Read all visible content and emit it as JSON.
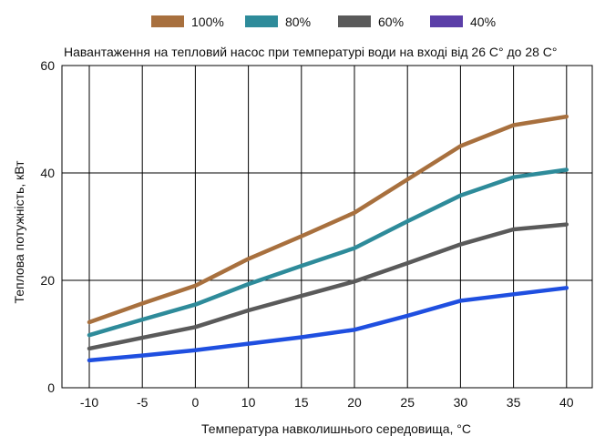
{
  "chart_data": {
    "type": "line",
    "title": "Навантаження на тепловий насос при температурі води на вході від 26 С° до 28 С°",
    "xlabel": "Температура навколишнього середовища, °С",
    "ylabel": "Теплова потужність, кВт",
    "x": [
      -10,
      -5,
      0,
      10,
      15,
      20,
      25,
      30,
      35,
      40
    ],
    "xlim": [
      -10,
      40
    ],
    "ylim": [
      0,
      60
    ],
    "yticks": [
      0,
      20,
      40,
      60
    ],
    "grid": "vertical at each x category, horizontal at 20 and 40",
    "legend_position": "top",
    "series": [
      {
        "name": "100%",
        "color": "#A8703E",
        "values": [
          12.2,
          15.7,
          19.0,
          24.0,
          28.2,
          32.6,
          38.8,
          45.0,
          48.9,
          50.5
        ]
      },
      {
        "name": "80%",
        "color": "#2E8B9A",
        "values": [
          9.8,
          12.7,
          15.5,
          19.3,
          22.7,
          26.0,
          31.0,
          35.8,
          39.2,
          40.6
        ]
      },
      {
        "name": "60%",
        "color": "#5A5A5A",
        "values": [
          7.3,
          9.3,
          11.3,
          14.4,
          17.1,
          19.8,
          23.2,
          26.7,
          29.5,
          30.4
        ]
      },
      {
        "name": "40%",
        "color": "#5B3FA8",
        "values": [
          5.1,
          6.0,
          7.0,
          8.2,
          9.4,
          10.8,
          13.4,
          16.2,
          17.4,
          18.6
        ]
      }
    ],
    "unlabeled_series": [
      {
        "color": "#1F4FE0",
        "values": [
          5.1,
          6.0,
          7.0,
          8.2,
          9.4,
          10.8,
          13.4,
          16.2,
          17.4,
          18.6
        ]
      }
    ]
  }
}
